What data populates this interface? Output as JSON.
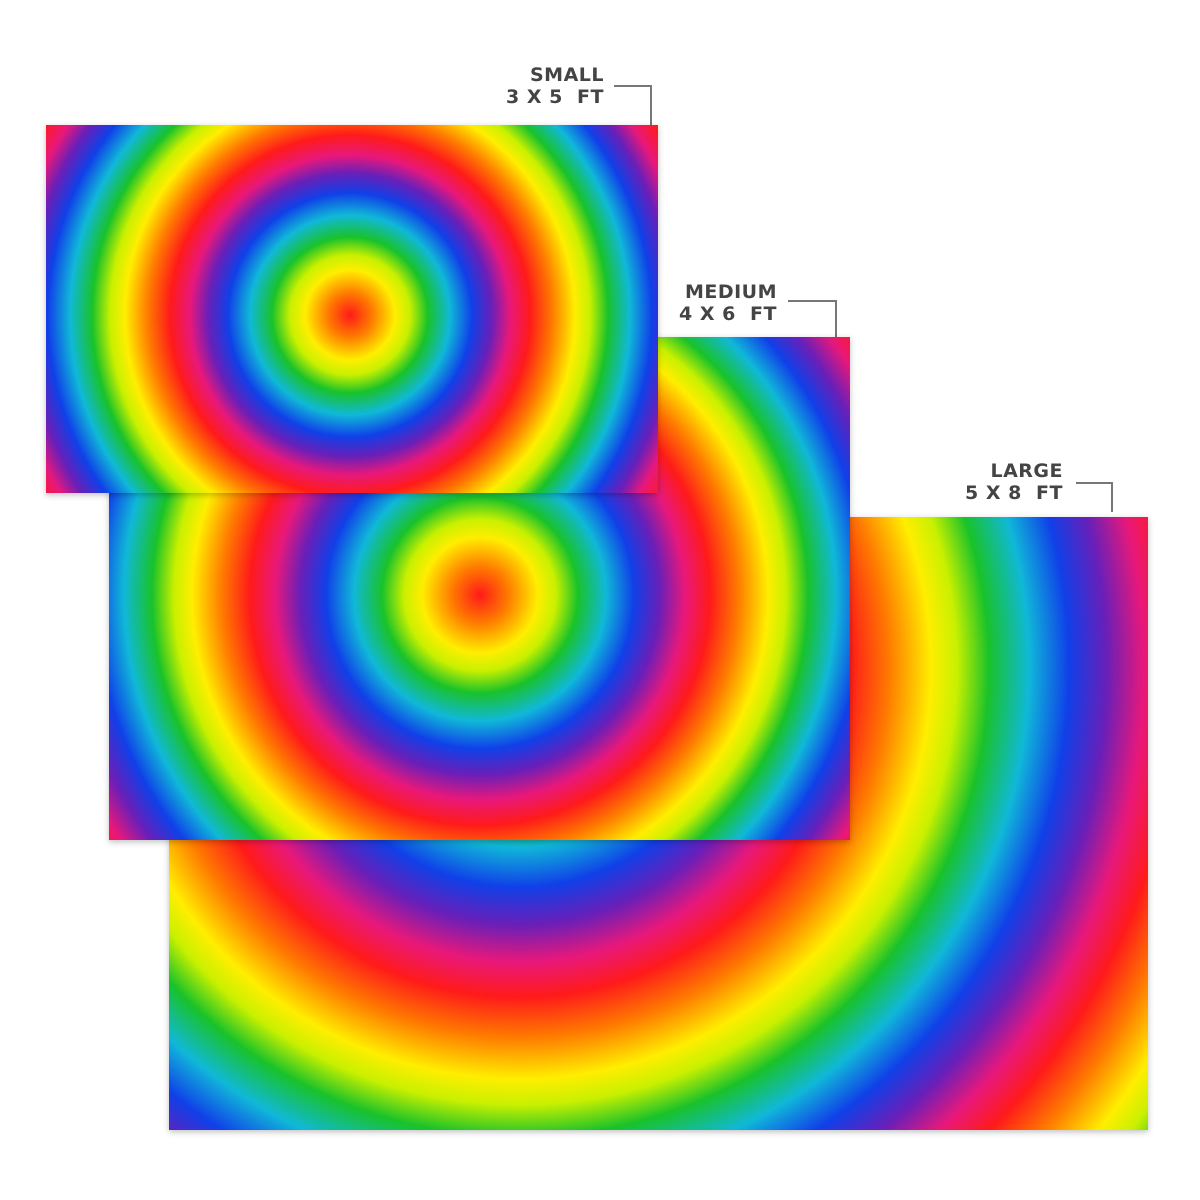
{
  "sizes": [
    {
      "name": "SMALL",
      "dimensions": "3 X 5  FT"
    },
    {
      "name": "MEDIUM",
      "dimensions": "4 X 6  FT"
    },
    {
      "name": "LARGE",
      "dimensions": "5 X 8  FT"
    }
  ],
  "pattern": "rainbow-tie-dye-spiral",
  "colors": [
    "#ff1a1a",
    "#ff7a00",
    "#ffee00",
    "#19c22a",
    "#10b8d8",
    "#1040e8",
    "#6a1fb8",
    "#e8187a"
  ]
}
